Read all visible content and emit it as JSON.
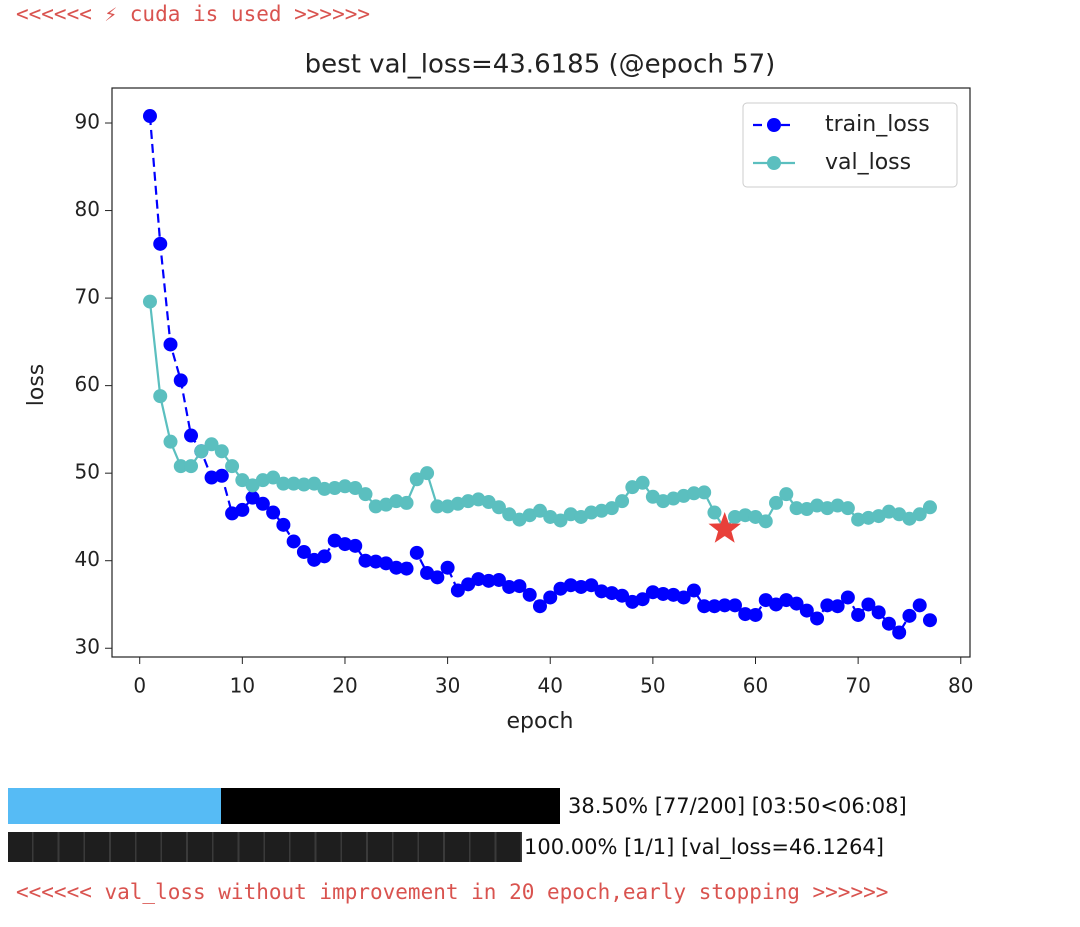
{
  "header_log": "<<<<<< ⚡ cuda is used >>>>>>",
  "chart_data": {
    "type": "line",
    "title": "best val_loss=43.6185 (@epoch 57)",
    "x_label": "epoch",
    "y_label": "loss",
    "x": [
      1,
      2,
      3,
      4,
      5,
      6,
      7,
      8,
      9,
      10,
      11,
      12,
      13,
      14,
      15,
      16,
      17,
      18,
      19,
      20,
      21,
      22,
      23,
      24,
      25,
      26,
      27,
      28,
      29,
      30,
      31,
      32,
      33,
      34,
      35,
      36,
      37,
      38,
      39,
      40,
      41,
      42,
      43,
      44,
      45,
      46,
      47,
      48,
      49,
      50,
      51,
      52,
      53,
      54,
      55,
      56,
      57,
      58,
      59,
      60,
      61,
      62,
      63,
      64,
      65,
      66,
      67,
      68,
      69,
      70,
      71,
      72,
      73,
      74,
      75,
      76,
      77
    ],
    "series": [
      {
        "name": "train_loss",
        "color": "#0000ff",
        "dashed": true,
        "values": [
          90.8,
          76.2,
          64.7,
          60.6,
          54.3,
          52.5,
          49.5,
          49.7,
          45.4,
          45.8,
          47.2,
          46.5,
          45.5,
          44.1,
          42.2,
          41.0,
          40.1,
          40.5,
          42.3,
          41.9,
          41.7,
          40.0,
          39.9,
          39.7,
          39.2,
          39.1,
          40.9,
          38.6,
          38.1,
          39.2,
          36.6,
          37.3,
          37.9,
          37.7,
          37.8,
          37.0,
          37.1,
          36.1,
          34.8,
          35.8,
          36.8,
          37.2,
          37.0,
          37.2,
          36.5,
          36.3,
          36.0,
          35.3,
          35.6,
          36.4,
          36.2,
          36.1,
          35.8,
          36.6,
          34.8,
          34.8,
          34.9,
          34.9,
          33.9,
          33.8,
          35.5,
          35.0,
          35.5,
          35.1,
          34.3,
          33.4,
          34.9,
          34.8,
          35.8,
          33.8,
          35.0,
          34.1,
          32.8,
          31.8,
          33.7,
          34.9,
          33.2
        ]
      },
      {
        "name": "val_loss",
        "color": "#5bbfbf",
        "dashed": false,
        "values": [
          69.6,
          58.8,
          53.6,
          50.8,
          50.8,
          52.5,
          53.3,
          52.5,
          50.8,
          49.2,
          48.6,
          49.2,
          49.5,
          48.8,
          48.8,
          48.7,
          48.8,
          48.2,
          48.3,
          48.5,
          48.3,
          47.6,
          46.2,
          46.4,
          46.8,
          46.6,
          49.3,
          50.0,
          46.2,
          46.2,
          46.5,
          46.8,
          47.0,
          46.7,
          46.1,
          45.3,
          44.7,
          45.2,
          45.7,
          45.0,
          44.6,
          45.3,
          45.0,
          45.5,
          45.7,
          46.0,
          46.8,
          48.4,
          48.9,
          47.3,
          46.8,
          47.1,
          47.4,
          47.7,
          47.8,
          45.5,
          43.6,
          45.0,
          45.2,
          45.0,
          44.5,
          46.6,
          47.6,
          46.0,
          45.9,
          46.3,
          46.0,
          46.3,
          46.0,
          44.7,
          44.9,
          45.1,
          45.6,
          45.3,
          44.8,
          45.3,
          46.1
        ]
      }
    ],
    "best_point": {
      "x": 57,
      "y": 43.6185,
      "color": "#e8403a"
    },
    "xlim": [
      -2.7,
      80.9
    ],
    "ylim": [
      29.0,
      94.0
    ],
    "xticks": [
      0,
      10,
      20,
      30,
      40,
      50,
      60,
      70,
      80
    ],
    "yticks": [
      30,
      40,
      50,
      60,
      70,
      80,
      90
    ],
    "legend": "upper right"
  },
  "progress": [
    {
      "percent": 38.5,
      "color": "#56bbf5",
      "label": "38.50% [77/200] [03:50<06:08]"
    },
    {
      "percent": 100,
      "color": "#1e1e1e",
      "label": "100.00% [1/1] [val_loss=46.1264]"
    }
  ],
  "footer_log": "<<<<<< val_loss without improvement in 20 epoch,early stopping >>>>>>"
}
